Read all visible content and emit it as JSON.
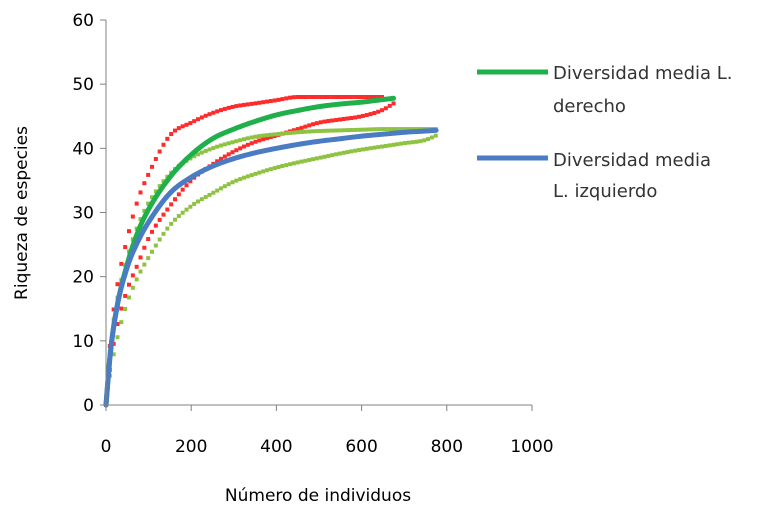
{
  "chart_data": {
    "type": "line",
    "title": "",
    "xlabel": "Número de individuos",
    "ylabel": "Riqueza de especies",
    "xlim": [
      0,
      1000
    ],
    "ylim": [
      0,
      60
    ],
    "xticks": [
      "0",
      "200",
      "400",
      "600",
      "800",
      "1000"
    ],
    "yticks": [
      "0",
      "10",
      "20",
      "30",
      "40",
      "50",
      "60"
    ],
    "grid": false,
    "legend": "right",
    "series": [
      {
        "name": "Diversidad media L. derecho",
        "color": "#1fb04b",
        "style": "solid",
        "x": [
          0,
          10,
          25,
          50,
          75,
          100,
          150,
          200,
          250,
          300,
          350,
          400,
          450,
          500,
          550,
          600,
          650,
          675
        ],
        "y": [
          0,
          8,
          15,
          22,
          27,
          30.5,
          35.5,
          39,
          41.5,
          43,
          44.2,
          45.2,
          45.9,
          46.5,
          46.9,
          47.2,
          47.6,
          47.8
        ]
      },
      {
        "name": "Diversidad media L. izquierdo",
        "color": "#4a7cc3",
        "style": "solid",
        "x": [
          0,
          10,
          25,
          50,
          75,
          100,
          150,
          200,
          250,
          300,
          350,
          400,
          450,
          500,
          550,
          600,
          650,
          700,
          750,
          775
        ],
        "y": [
          0,
          8,
          15,
          21.5,
          25.5,
          28.5,
          33,
          35.5,
          37.2,
          38.4,
          39.3,
          40,
          40.6,
          41.1,
          41.5,
          41.9,
          42.2,
          42.5,
          42.7,
          42.8
        ]
      },
      {
        "color": "#ff2a2a",
        "style": "dotted",
        "x": [
          0,
          10,
          25,
          50,
          75,
          100,
          150,
          200,
          250,
          300,
          350,
          400,
          450,
          500,
          550,
          600,
          650
        ],
        "y": [
          0,
          10,
          18,
          26,
          32,
          36,
          42,
          44,
          45.5,
          46.5,
          47,
          47.5,
          48,
          48,
          48,
          48,
          48
        ]
      },
      {
        "color": "#ff2a2a",
        "style": "dotted",
        "x": [
          0,
          10,
          25,
          50,
          75,
          100,
          150,
          200,
          250,
          300,
          350,
          400,
          450,
          500,
          550,
          600,
          650,
          675
        ],
        "y": [
          0,
          6,
          12,
          18,
          22,
          26,
          31,
          35,
          37.5,
          39.5,
          41,
          42,
          43,
          44,
          44.5,
          45,
          46,
          47
        ]
      },
      {
        "color": "#8ec342",
        "style": "dotted",
        "x": [
          0,
          10,
          25,
          50,
          75,
          100,
          150,
          200,
          250,
          300,
          350,
          400,
          450,
          500,
          550,
          600,
          650,
          700,
          750,
          775
        ],
        "y": [
          0,
          9,
          16,
          23,
          28,
          31.5,
          36,
          38.5,
          40,
          41,
          41.8,
          42.2,
          42.5,
          42.7,
          42.8,
          42.9,
          43,
          43,
          43,
          43
        ]
      },
      {
        "color": "#8ec342",
        "style": "dotted",
        "x": [
          0,
          10,
          25,
          50,
          75,
          100,
          150,
          200,
          250,
          300,
          350,
          400,
          450,
          500,
          550,
          600,
          650,
          700,
          750,
          775
        ],
        "y": [
          0,
          5,
          10,
          16,
          20,
          23,
          28,
          31,
          33,
          34.8,
          36,
          37,
          37.8,
          38.5,
          39.2,
          39.8,
          40.3,
          40.8,
          41.3,
          42
        ]
      }
    ]
  }
}
